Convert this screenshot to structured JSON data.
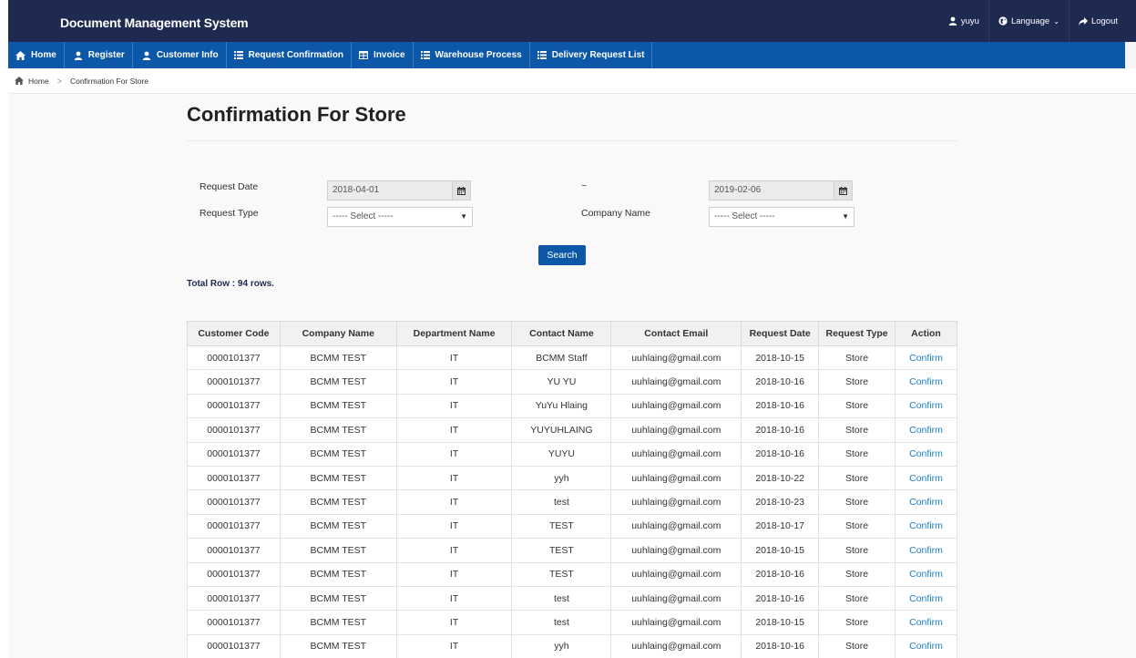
{
  "app": {
    "title": "Document Management System"
  },
  "topbar": {
    "user": "yuyu",
    "language": "Language",
    "language_caret": "⌄",
    "logout": "Logout"
  },
  "nav": {
    "items": [
      {
        "label": "Home",
        "icon": "home-icon"
      },
      {
        "label": "Register",
        "icon": "user-icon"
      },
      {
        "label": "Customer Info",
        "icon": "user-icon"
      },
      {
        "label": "Request Confirmation",
        "icon": "list-icon"
      },
      {
        "label": "Invoice",
        "icon": "table-icon"
      },
      {
        "label": "Warehouse Process",
        "icon": "list-icon"
      },
      {
        "label": "Delivery Request List",
        "icon": "list-icon"
      }
    ]
  },
  "breadcrumb": {
    "home": "Home",
    "separator": ">",
    "current": "Confirmation For Store"
  },
  "page": {
    "title": "Confirmation For Store"
  },
  "filters": {
    "request_date_label": "Request Date",
    "date_from": "2018-04-01",
    "range_separator": "~",
    "date_to": "2019-02-06",
    "request_type_label": "Request Type",
    "request_type_value": "----- Select -----",
    "company_name_label": "Company Name",
    "company_name_value": "----- Select -----",
    "select_arrow": "▼",
    "search_label": "Search"
  },
  "summary": {
    "total": "Total Row : 94 rows."
  },
  "table": {
    "headers": [
      "Customer Code",
      "Company Name",
      "Department Name",
      "Contact Name",
      "Contact Email",
      "Request Date",
      "Request Type",
      "Action"
    ],
    "rows": [
      [
        "0000101377",
        "BCMM TEST",
        "IT",
        "BCMM Staff",
        "uuhlaing@gmail.com",
        "2018-10-15",
        "Store",
        "Confirm"
      ],
      [
        "0000101377",
        "BCMM TEST",
        "IT",
        "YU YU",
        "uuhlaing@gmail.com",
        "2018-10-16",
        "Store",
        "Confirm"
      ],
      [
        "0000101377",
        "BCMM TEST",
        "IT",
        "YuYu Hlaing",
        "uuhlaing@gmail.com",
        "2018-10-16",
        "Store",
        "Confirm"
      ],
      [
        "0000101377",
        "BCMM TEST",
        "IT",
        "YUYUHLAING",
        "uuhlaing@gmail.com",
        "2018-10-16",
        "Store",
        "Confirm"
      ],
      [
        "0000101377",
        "BCMM TEST",
        "IT",
        "YUYU",
        "uuhlaing@gmail.com",
        "2018-10-16",
        "Store",
        "Confirm"
      ],
      [
        "0000101377",
        "BCMM TEST",
        "IT",
        "yyh",
        "uuhlaing@gmail.com",
        "2018-10-22",
        "Store",
        "Confirm"
      ],
      [
        "0000101377",
        "BCMM TEST",
        "IT",
        "test",
        "uuhlaing@gmail.com",
        "2018-10-23",
        "Store",
        "Confirm"
      ],
      [
        "0000101377",
        "BCMM TEST",
        "IT",
        "TEST",
        "uuhlaing@gmail.com",
        "2018-10-17",
        "Store",
        "Confirm"
      ],
      [
        "0000101377",
        "BCMM TEST",
        "IT",
        "TEST",
        "uuhlaing@gmail.com",
        "2018-10-15",
        "Store",
        "Confirm"
      ],
      [
        "0000101377",
        "BCMM TEST",
        "IT",
        "TEST",
        "uuhlaing@gmail.com",
        "2018-10-16",
        "Store",
        "Confirm"
      ],
      [
        "0000101377",
        "BCMM TEST",
        "IT",
        "test",
        "uuhlaing@gmail.com",
        "2018-10-16",
        "Store",
        "Confirm"
      ],
      [
        "0000101377",
        "BCMM TEST",
        "IT",
        "test",
        "uuhlaing@gmail.com",
        "2018-10-15",
        "Store",
        "Confirm"
      ],
      [
        "0000101377",
        "BCMM TEST",
        "IT",
        "yyh",
        "uuhlaing@gmail.com",
        "2018-10-16",
        "Store",
        "Confirm"
      ]
    ]
  },
  "colors": {
    "header_bg": "#1f2a50",
    "nav_bg": "#0c57a8",
    "link": "#1a7fc9",
    "search_button": "#0c57a8"
  }
}
